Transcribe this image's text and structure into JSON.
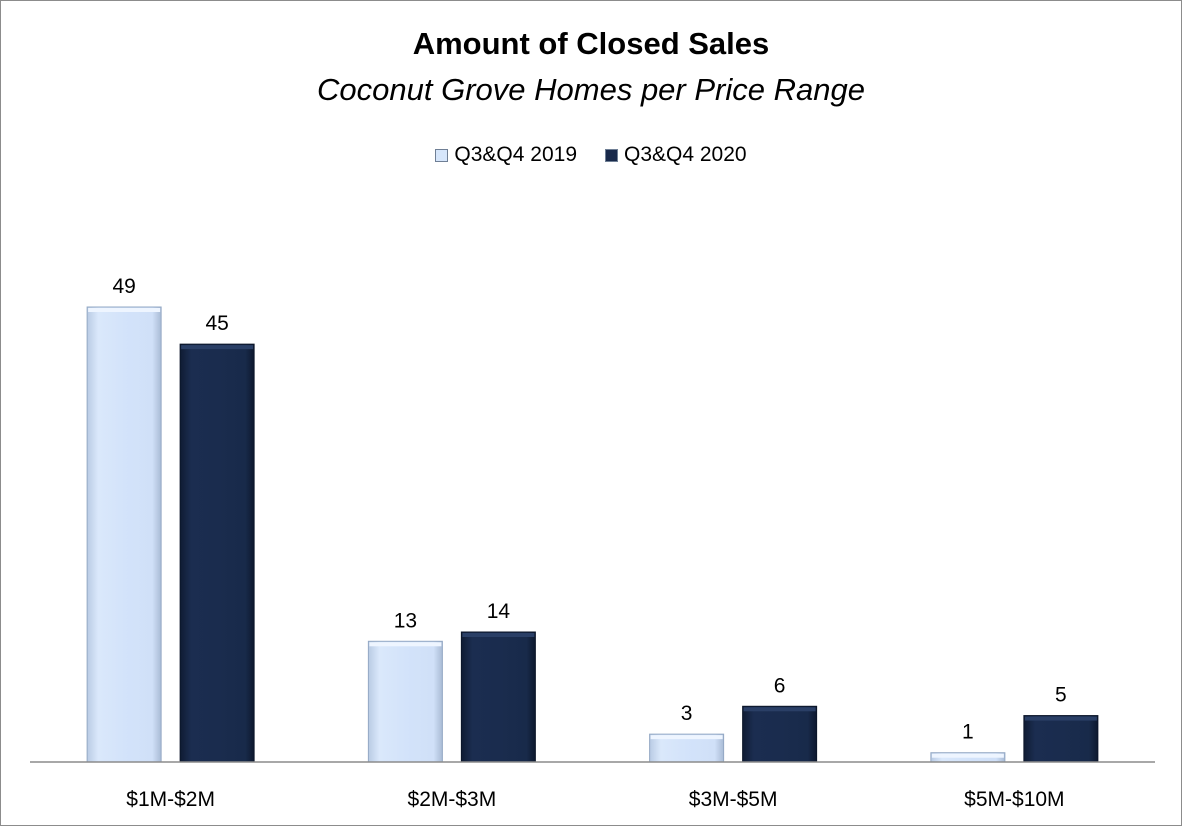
{
  "chart_data": {
    "type": "bar",
    "title": "Amount of Closed Sales",
    "subtitle": "Coconut Grove Homes per Price Range",
    "categories": [
      "$1M-$2M",
      "$2M-$3M",
      "$3M-$5M",
      "$5M-$10M"
    ],
    "series": [
      {
        "name": "Q3&Q4 2019",
        "values": [
          49,
          13,
          3,
          1
        ],
        "color": "#d6e6fb"
      },
      {
        "name": "Q3&Q4 2020",
        "values": [
          45,
          14,
          6,
          5
        ],
        "color": "#18294a"
      }
    ],
    "xlabel": "",
    "ylabel": "",
    "ylim": [
      0,
      49
    ],
    "grid": false,
    "legend_position": "top-center",
    "data_labels": true
  }
}
